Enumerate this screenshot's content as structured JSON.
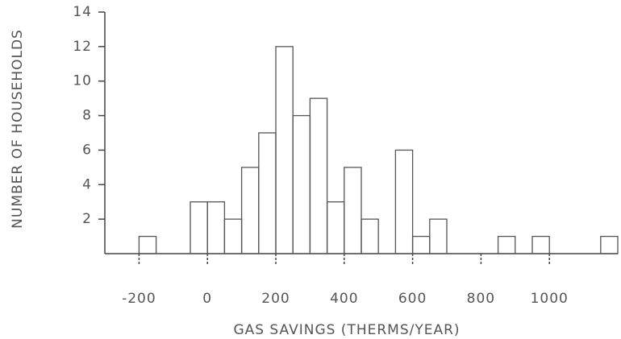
{
  "chart_data": {
    "type": "histogram",
    "x_label": "GAS SAVINGS (THERMS/YEAR)",
    "y_label": "NUMBER OF HOUSEHOLDS",
    "bins": [
      -200,
      -150,
      -100,
      -50,
      0,
      50,
      100,
      150,
      200,
      250,
      300,
      350,
      400,
      450,
      500,
      550,
      600,
      650,
      700,
      750,
      800,
      850,
      900,
      950,
      1000,
      1050,
      1100,
      1150,
      1200
    ],
    "values": [
      1,
      0,
      0,
      3,
      3,
      2,
      5,
      7,
      12,
      8,
      9,
      3,
      5,
      2,
      0,
      6,
      1,
      2,
      0,
      0,
      0,
      1,
      0,
      1,
      0,
      0,
      0,
      1
    ],
    "color": "#555555",
    "xlim": [
      -300,
      1200
    ],
    "xticks": [
      -200,
      0,
      200,
      400,
      600,
      800,
      1000
    ],
    "ylim": [
      0,
      14
    ],
    "yticks": [
      2,
      4,
      6,
      8,
      10,
      12,
      14
    ]
  }
}
